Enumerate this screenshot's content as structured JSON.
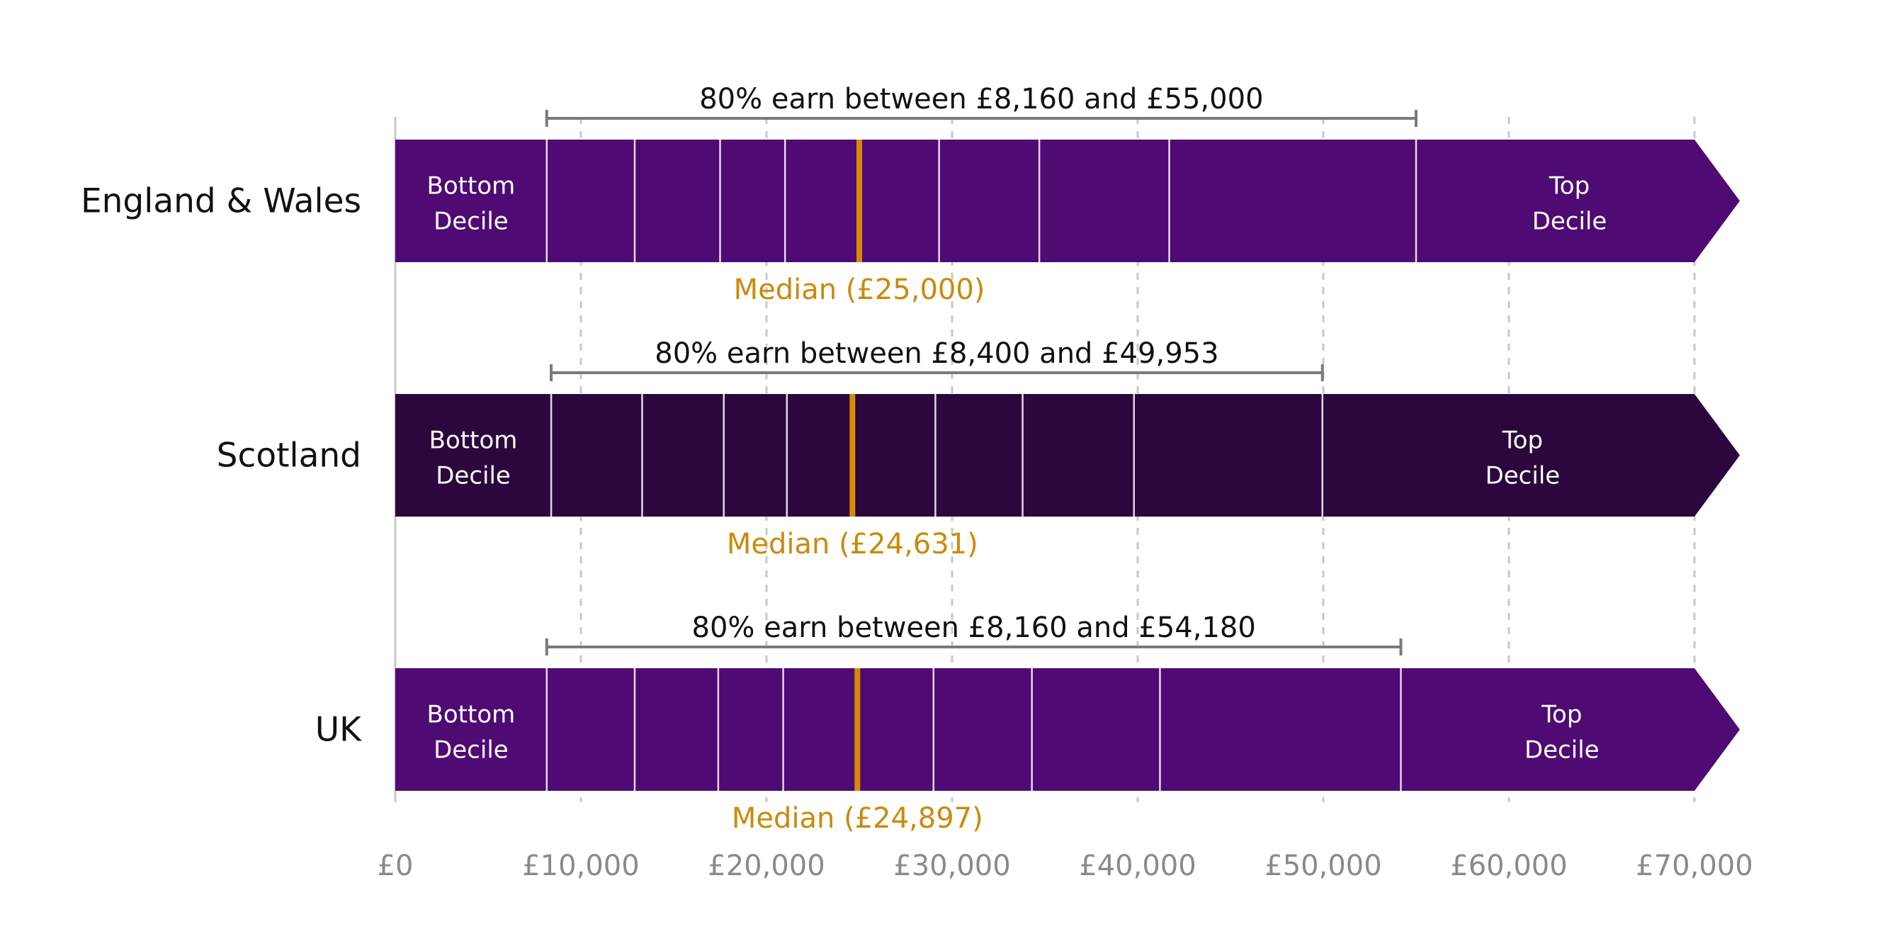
{
  "colors": {
    "england_wales_bar": "#4f0a73",
    "scotland_bar": "#2b073d",
    "uk_bar": "#4f0a73",
    "median": "#d68a06",
    "range": "#7a7a7a",
    "gridline": "#c8c8c8",
    "axis_text": "#8a8a8a",
    "median_text": "#c98a0c"
  },
  "chart_data": {
    "type": "bar",
    "orientation": "horizontal",
    "unit": "£",
    "xlim": [
      0,
      70000
    ],
    "x_ticks": [
      0,
      10000,
      20000,
      30000,
      40000,
      50000,
      60000,
      70000
    ],
    "x_tick_labels": [
      "£0",
      "£10,000",
      "£20,000",
      "£30,000",
      "£40,000",
      "£50,000",
      "£60,000",
      "£70,000"
    ],
    "grid": "vertical dashed",
    "rows": [
      {
        "name": "England & Wales",
        "color": "#4f0a73",
        "deciles": [
          8160,
          12900,
          17500,
          21000,
          25000,
          29300,
          34700,
          41700,
          55000
        ],
        "median": 25000,
        "median_label": "Median (£25,000)",
        "range_low": 8160,
        "range_high": 55000,
        "range_label": "80% earn between £8,160 and £55,000",
        "bottom_label": [
          "Bottom",
          "Decile"
        ],
        "top_label": [
          "Top",
          "Decile"
        ]
      },
      {
        "name": "Scotland",
        "color": "#2b073d",
        "deciles": [
          8400,
          13300,
          17700,
          21100,
          24631,
          29100,
          33800,
          39800,
          49953
        ],
        "median": 24631,
        "median_label": "Median (£24,631)",
        "range_low": 8400,
        "range_high": 49953,
        "range_label": "80% earn between £8,400 and £49,953",
        "bottom_label": [
          "Bottom",
          "Decile"
        ],
        "top_label": [
          "Top",
          "Decile"
        ]
      },
      {
        "name": "UK",
        "color": "#4f0a73",
        "deciles": [
          8160,
          12900,
          17400,
          20900,
          24897,
          29000,
          34300,
          41200,
          54180
        ],
        "median": 24897,
        "median_label": "Median (£24,897)",
        "range_low": 8160,
        "range_high": 54180,
        "range_label": "80% earn between £8,160 and £54,180",
        "bottom_label": [
          "Bottom",
          "Decile"
        ],
        "top_label": [
          "Top",
          "Decile"
        ]
      }
    ]
  }
}
